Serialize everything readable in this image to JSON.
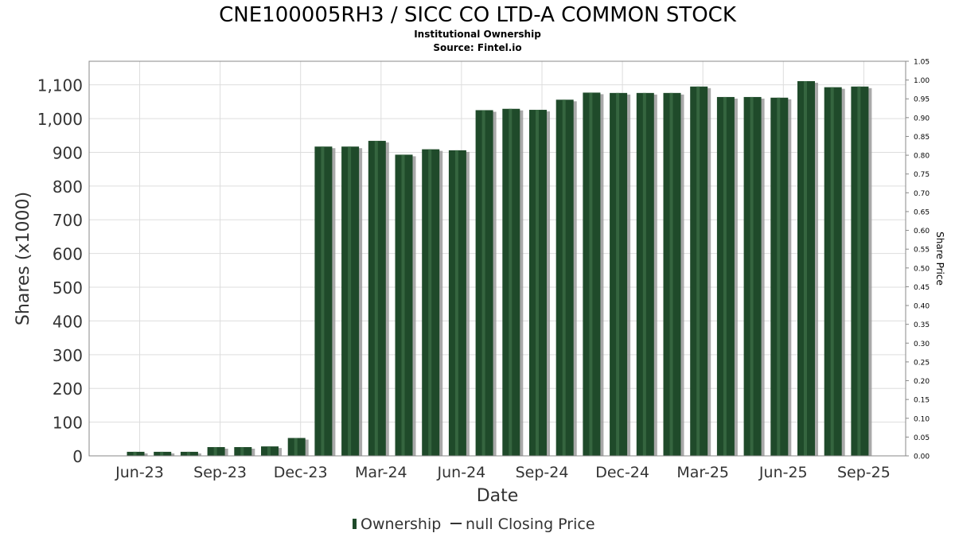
{
  "header": {
    "title": "CNE100005RH3 / SICC CO LTD-A COMMON STOCK",
    "subtitle": "Institutional Ownership",
    "source": "Source: Fintel.io"
  },
  "legend": {
    "ownership_label": "Ownership",
    "price_label": "null Closing Price"
  },
  "colors": {
    "bar": "#1f4a2a",
    "bar_highlight": "#3b6b45",
    "bar_shadow": "#9a9a9a",
    "grid": "#dddddd",
    "axis": "#888888"
  },
  "chart_data": {
    "type": "bar",
    "title": "CNE100005RH3 / SICC CO LTD-A COMMON STOCK",
    "xlabel": "Date",
    "ylabel": "Shares (x1000)",
    "y2label": "Share Price",
    "ylim": [
      0,
      1170
    ],
    "y2lim": [
      0,
      1.05
    ],
    "yticks": [
      0,
      100,
      200,
      300,
      400,
      500,
      600,
      700,
      800,
      900,
      1000,
      1100
    ],
    "ytick_labels": [
      "0",
      "100",
      "200",
      "300",
      "400",
      "500",
      "600",
      "700",
      "800",
      "900",
      "1,000",
      "1,100"
    ],
    "y2ticks": [
      "0.00",
      "0.05",
      "0.10",
      "0.15",
      "0.20",
      "0.25",
      "0.30",
      "0.35",
      "0.40",
      "0.45",
      "0.50",
      "0.55",
      "0.60",
      "0.65",
      "0.70",
      "0.75",
      "0.80",
      "0.85",
      "0.90",
      "0.95",
      "1.00",
      "1.05"
    ],
    "xticks": [
      "Jun-23",
      "Sep-23",
      "Dec-23",
      "Mar-24",
      "Jun-24",
      "Sep-24",
      "Dec-24",
      "Mar-25",
      "Jun-25",
      "Sep-25"
    ],
    "grid": true,
    "legend_position": "bottom",
    "series": [
      {
        "name": "Ownership",
        "values": [
          12,
          12,
          12,
          26,
          26,
          28,
          53,
          917,
          917,
          934,
          893,
          909,
          906,
          1025,
          1029,
          1026,
          1056,
          1077,
          1076,
          1076,
          1076,
          1095,
          1064,
          1064,
          1062,
          1111,
          1093,
          1095
        ]
      }
    ]
  }
}
